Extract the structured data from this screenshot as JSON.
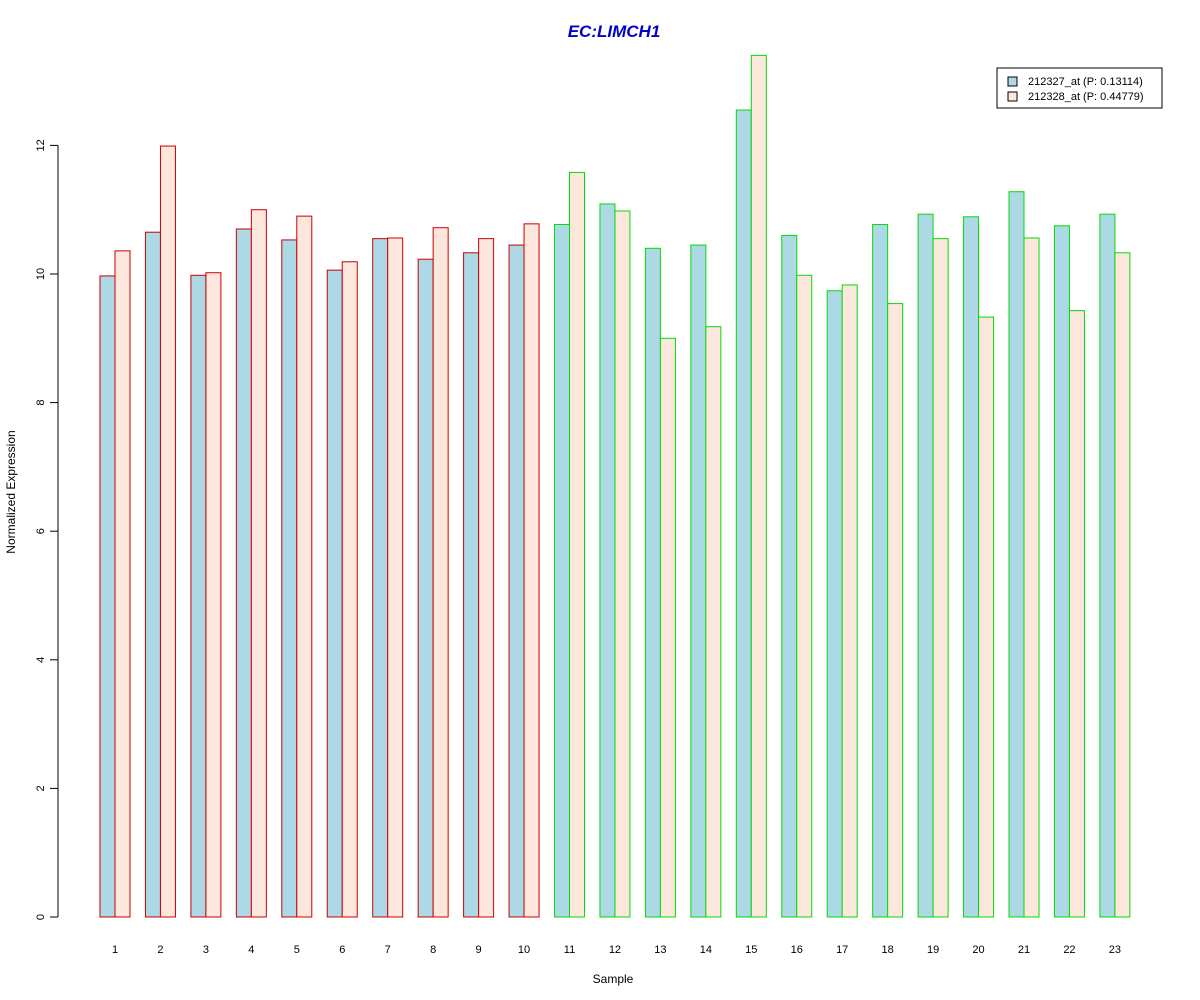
{
  "chart_data": {
    "type": "bar",
    "title": "EC:LIMCH1",
    "title_color": "#0000CC",
    "xlabel": "Sample",
    "ylabel": "Normalized Expression",
    "ylim": [
      0,
      13.4
    ],
    "yticks": [
      "0",
      "2",
      "4",
      "6",
      "8",
      "10",
      "12"
    ],
    "categories": [
      "1",
      "2",
      "3",
      "4",
      "5",
      "6",
      "7",
      "8",
      "9",
      "10",
      "11",
      "12",
      "13",
      "14",
      "15",
      "16",
      "17",
      "18",
      "19",
      "20",
      "21",
      "22",
      "23"
    ],
    "group_border_colors": [
      "#CC0000",
      "#CC0000",
      "#CC0000",
      "#CC0000",
      "#CC0000",
      "#CC0000",
      "#CC0000",
      "#CC0000",
      "#CC0000",
      "#CC0000",
      "#00DD00",
      "#00DD00",
      "#00DD00",
      "#00DD00",
      "#00DD00",
      "#00DD00",
      "#00DD00",
      "#00DD00",
      "#00DD00",
      "#00DD00",
      "#00DD00",
      "#00DD00",
      "#00DD00"
    ],
    "legend_position": "top-right",
    "series": [
      {
        "name": "212327_at (P: 0.13114)",
        "fill": "#ADD8E6",
        "values": [
          9.97,
          10.65,
          9.98,
          10.7,
          10.53,
          10.06,
          10.55,
          10.23,
          10.33,
          10.45,
          10.77,
          11.09,
          10.4,
          10.45,
          12.55,
          10.6,
          9.74,
          10.77,
          10.93,
          10.89,
          11.28,
          10.75,
          10.93
        ]
      },
      {
        "name": "212328_at (P: 0.44779)",
        "fill": "#FDE6DC",
        "values": [
          10.36,
          11.99,
          10.02,
          11.0,
          10.9,
          10.19,
          10.56,
          10.72,
          10.55,
          10.78,
          11.58,
          10.98,
          9.0,
          9.18,
          13.4,
          9.98,
          9.83,
          9.54,
          10.55,
          9.33,
          10.56,
          9.43,
          10.33
        ]
      }
    ]
  }
}
